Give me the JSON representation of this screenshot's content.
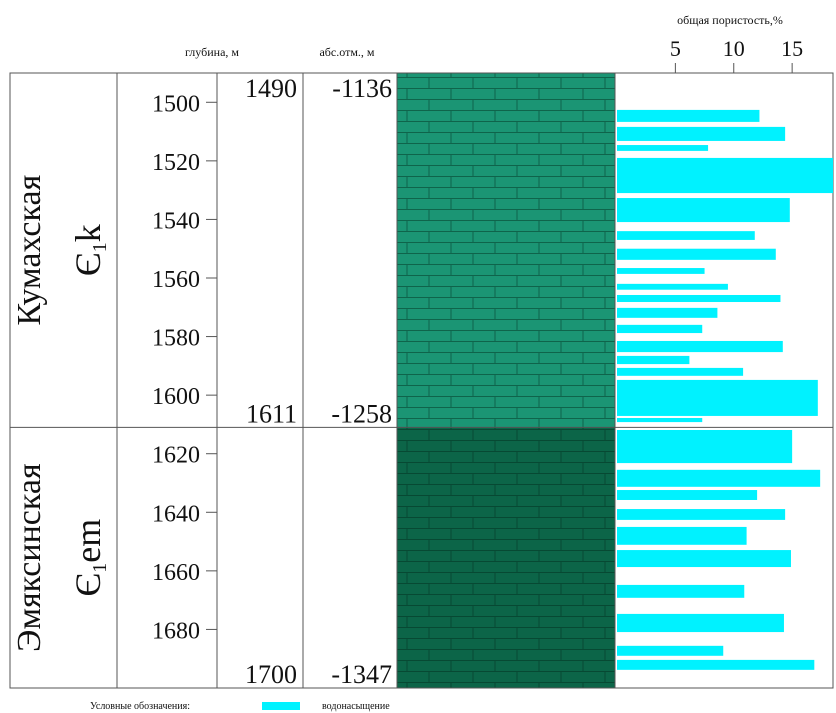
{
  "headers": {
    "depth": "глубина, м",
    "abs": "абс.отм., м"
  },
  "formations": [
    {
      "name": "Кумахская",
      "symbol": {
        "letter": "Є",
        "sub": "1",
        "suffix": "k"
      },
      "top_depth": 1490,
      "bottom_depth": 1611,
      "top_abs": -1136,
      "bottom_abs": -1258,
      "color": "#1b9574"
    },
    {
      "name": "Эмяксинская",
      "symbol": {
        "letter": "Є",
        "sub": "1",
        "suffix": "em"
      },
      "top_depth": 1611,
      "bottom_depth": 1700,
      "top_abs": -1258,
      "bottom_abs": -1347,
      "color": "#0c6548"
    }
  ],
  "chart_data": {
    "type": "bar",
    "orientation": "horizontal",
    "x_label": "общая пористость,%",
    "legend_title": "Условные обозначения:",
    "xlim": [
      0,
      18.5
    ],
    "xticks": [
      5,
      10,
      15
    ],
    "ylim": [
      1490,
      1700
    ],
    "yticks": [
      1500,
      1520,
      1540,
      1560,
      1580,
      1600,
      1620,
      1640,
      1660,
      1680
    ],
    "series": [
      {
        "name": "водонасыщение",
        "color": "#00f2ff",
        "depth_from": [
          1502.6,
          1508.4,
          1514.6,
          1519,
          1532.7,
          1544,
          1550,
          1556.6,
          1562,
          1565.8,
          1570.2,
          1576,
          1581.5,
          1586.6,
          1590.7,
          1594.8,
          1607.8,
          1611.9,
          1625.5,
          1632.4,
          1638.9,
          1645,
          1652.9,
          1664.8,
          1674.7,
          1685.6,
          1690.4
        ],
        "depth_to": [
          1506.7,
          1513.2,
          1516.6,
          1531,
          1540.9,
          1547,
          1553.8,
          1558.6,
          1564,
          1568.2,
          1573.6,
          1578.8,
          1585.3,
          1589.4,
          1593.4,
          1607.1,
          1609.2,
          1623.2,
          1631.3,
          1635.8,
          1642.6,
          1651.1,
          1658.7,
          1669.2,
          1680.9,
          1689,
          1693.8
        ],
        "values": [
          12.2,
          14.4,
          7.8,
          18.5,
          14.8,
          11.8,
          13.6,
          7.5,
          9.5,
          14,
          8.6,
          7.3,
          14.2,
          6.2,
          10.8,
          17.2,
          7.3,
          15,
          17.4,
          12,
          14.4,
          11.1,
          14.9,
          10.9,
          14.3,
          9.1,
          16.9
        ]
      }
    ]
  }
}
